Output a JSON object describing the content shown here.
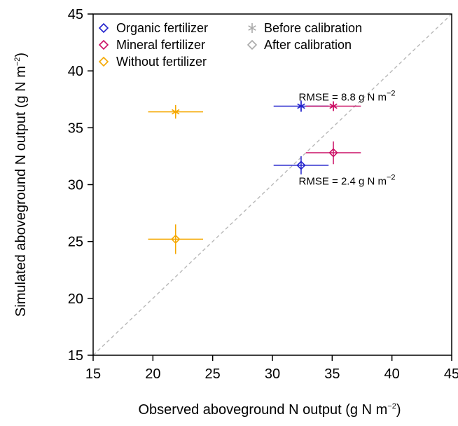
{
  "chart_data": {
    "type": "scatter",
    "xlabel_text": "Observed aboveground N output (g N m",
    "xlabel_exp": "−2",
    "xlabel_close": ")",
    "ylabel_text": "Simulated aboveground N output (g N m",
    "ylabel_exp": "−2",
    "ylabel_close": ")",
    "xlim": [
      15,
      45
    ],
    "ylim": [
      15,
      45
    ],
    "x_ticks": [
      15,
      20,
      25,
      30,
      35,
      40,
      45
    ],
    "y_ticks": [
      15,
      20,
      25,
      30,
      35,
      40,
      45
    ],
    "one_to_one_line": true,
    "grid": false,
    "legend_position": "top-left",
    "legend": {
      "groups": [
        {
          "label": "Organic fertilizer",
          "color": "#2222cc"
        },
        {
          "label": "Mineral fertilizer",
          "color": "#cc1166"
        },
        {
          "label": "Without fertilizer",
          "color": "#f5a800"
        }
      ],
      "markers": [
        {
          "label": "Before calibration",
          "symbol": "asterisk",
          "color": "#aaaaaa"
        },
        {
          "label": "After calibration",
          "symbol": "diamond",
          "color": "#aaaaaa"
        }
      ]
    },
    "series": [
      {
        "name": "Organic fertilizer",
        "color": "#2222cc",
        "points": [
          {
            "stage": "before",
            "x": 32.4,
            "y": 36.9,
            "x_err": 2.3,
            "y_err": 0.5
          },
          {
            "stage": "after",
            "x": 32.4,
            "y": 31.7,
            "x_err": 2.3,
            "y_err": 0.8
          }
        ]
      },
      {
        "name": "Mineral fertilizer",
        "color": "#cc1166",
        "points": [
          {
            "stage": "before",
            "x": 35.1,
            "y": 36.9,
            "x_err": 2.3,
            "y_err": 0.4
          },
          {
            "stage": "after",
            "x": 35.1,
            "y": 32.8,
            "x_err": 2.3,
            "y_err": 1.0
          }
        ]
      },
      {
        "name": "Without fertilizer",
        "color": "#f5a800",
        "points": [
          {
            "stage": "before",
            "x": 21.9,
            "y": 36.4,
            "x_err": 2.3,
            "y_err": 0.6
          },
          {
            "stage": "after",
            "x": 21.9,
            "y": 25.2,
            "x_err": 2.3,
            "y_err": 1.3
          }
        ]
      }
    ],
    "annotations": [
      {
        "text": "RMSE = 8.8 g N m",
        "exp": "−2",
        "x": 32.2,
        "y": 37.4
      },
      {
        "text": "RMSE = 2.4 g N m",
        "exp": "−2",
        "x": 32.2,
        "y": 30.0
      }
    ]
  }
}
